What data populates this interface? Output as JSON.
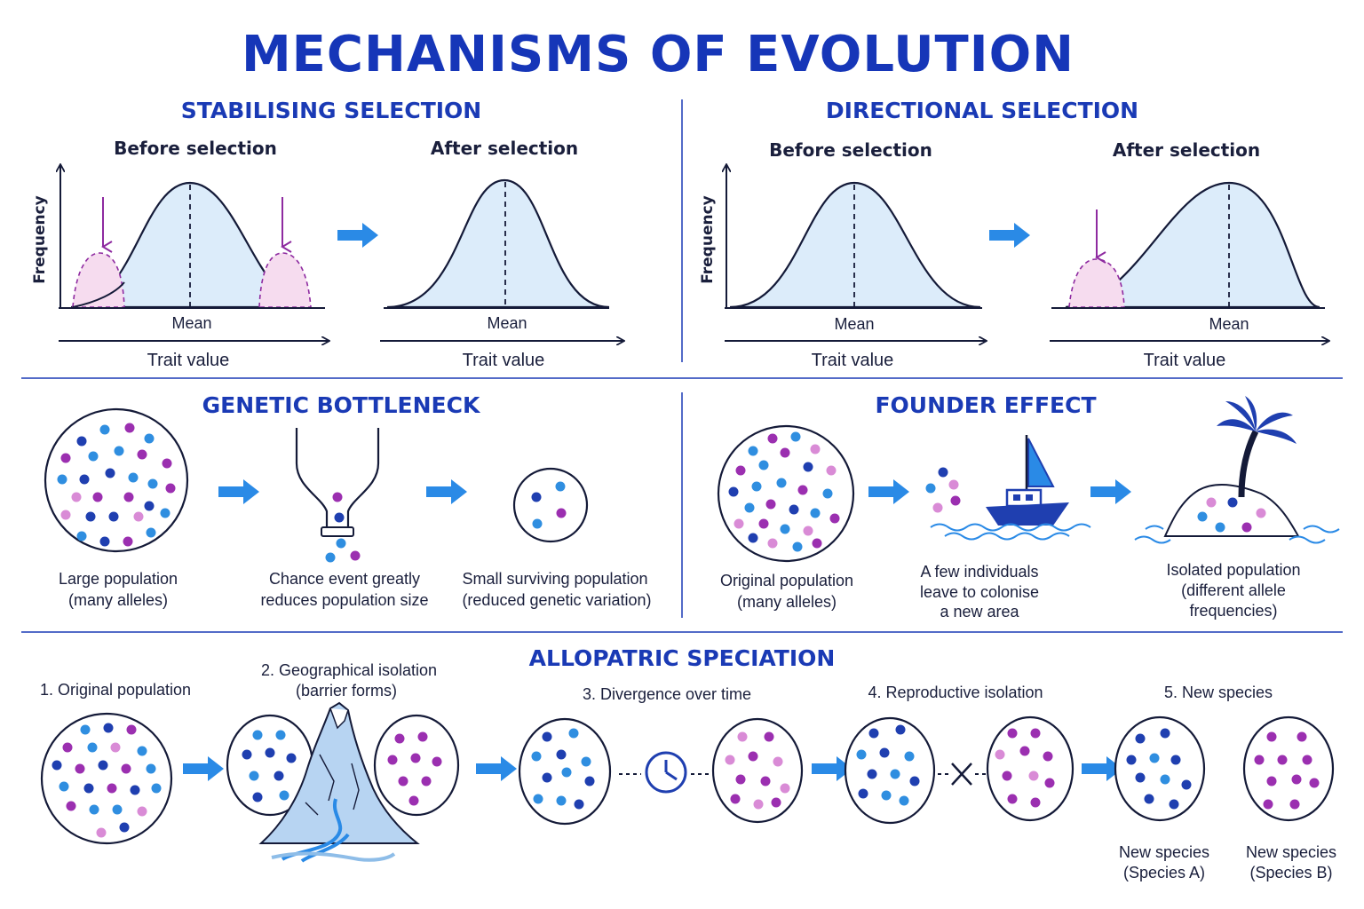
{
  "title": "MECHANISMS OF EVOLUTION",
  "stabilising": {
    "heading": "STABILISING SELECTION",
    "before": "Before selection",
    "after": "After selection",
    "freq": "Frequency",
    "mean_before": "Mean",
    "mean_after": "Mean",
    "trait_before": "Trait value",
    "trait_after": "Trait value"
  },
  "directional": {
    "heading": "DIRECTIONAL SELECTION",
    "before": "Before selection",
    "after": "After selection",
    "freq": "Frequency",
    "mean_before": "Mean",
    "mean_after": "Mean",
    "trait_before": "Trait value",
    "trait_after": "Trait value"
  },
  "bottleneck": {
    "heading": "GENETIC BOTTLENECK",
    "large": [
      "Large population",
      "(many alleles)"
    ],
    "chance": [
      "Chance event greatly",
      "reduces population size"
    ],
    "small": [
      "Small surviving population",
      "(reduced genetic variation)"
    ]
  },
  "founder": {
    "heading": "FOUNDER EFFECT",
    "original": [
      "Original population",
      "(many alleles)"
    ],
    "few": [
      "A few individuals",
      "leave to colonise",
      "a new area"
    ],
    "isolated": [
      "Isolated population",
      "(different allele",
      "frequencies)"
    ]
  },
  "allopatric": {
    "heading": "ALLOPATRIC SPECIATION",
    "step1": "1. Original population",
    "step2": [
      "2. Geographical isolation",
      "(barrier forms)"
    ],
    "step3": "3. Divergence over time",
    "step4": "4. Reproductive isolation",
    "step5": "5. New species",
    "species_a": [
      "New species",
      "(Species A)"
    ],
    "species_b": [
      "New species",
      "(Species B)"
    ]
  },
  "colors": {
    "heading": "#1a3ab5",
    "dot_dark_blue": "#1f3fb0",
    "dot_blue": "#2f8ee0",
    "dot_purple": "#9b2fb0",
    "dot_pink": "#d98bd6",
    "arrow": "#2a8ae6",
    "fill_blue": "#dcecfa",
    "fill_pink": "#f6dcef"
  }
}
